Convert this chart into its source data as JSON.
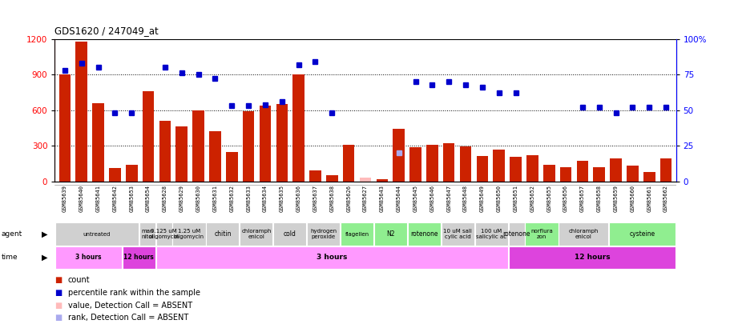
{
  "title": "GDS1620 / 247049_at",
  "gsm_labels": [
    "GSM85639",
    "GSM85640",
    "GSM85641",
    "GSM85642",
    "GSM85653",
    "GSM85654",
    "GSM85628",
    "GSM85629",
    "GSM85630",
    "GSM85631",
    "GSM85632",
    "GSM85633",
    "GSM85634",
    "GSM85635",
    "GSM85636",
    "GSM85637",
    "GSM85638",
    "GSM85626",
    "GSM85627",
    "GSM85643",
    "GSM85644",
    "GSM85645",
    "GSM85646",
    "GSM85647",
    "GSM85648",
    "GSM85649",
    "GSM85650",
    "GSM85651",
    "GSM85652",
    "GSM85655",
    "GSM85656",
    "GSM85657",
    "GSM85658",
    "GSM85659",
    "GSM85660",
    "GSM85661",
    "GSM85662"
  ],
  "bar_values": [
    900,
    1180,
    660,
    110,
    140,
    760,
    510,
    460,
    600,
    420,
    250,
    590,
    640,
    650,
    900,
    90,
    50,
    310,
    30,
    20,
    440,
    290,
    310,
    320,
    295,
    215,
    270,
    210,
    220,
    140,
    120,
    175,
    120,
    195,
    130,
    80,
    195
  ],
  "bar_absent": [
    false,
    false,
    false,
    false,
    false,
    false,
    false,
    false,
    false,
    false,
    false,
    false,
    false,
    false,
    false,
    false,
    false,
    false,
    true,
    false,
    false,
    false,
    false,
    false,
    false,
    false,
    false,
    false,
    false,
    false,
    false,
    false,
    false,
    false,
    false,
    false,
    false
  ],
  "percentile_values": [
    78,
    83,
    80,
    48,
    48,
    null,
    80,
    76,
    75,
    72,
    53,
    53,
    54,
    56,
    82,
    84,
    48,
    null,
    null,
    null,
    20,
    70,
    68,
    70,
    68,
    66,
    62,
    62,
    null,
    null,
    null,
    52,
    52,
    48,
    52,
    52,
    52
  ],
  "percentile_absent": [
    false,
    false,
    false,
    false,
    false,
    false,
    false,
    false,
    false,
    false,
    false,
    false,
    false,
    false,
    false,
    false,
    false,
    false,
    false,
    false,
    true,
    false,
    false,
    false,
    false,
    false,
    false,
    false,
    false,
    false,
    false,
    false,
    false,
    false,
    false,
    false,
    false
  ],
  "agent_groups": [
    {
      "label": "untreated",
      "start": 0,
      "end": 5,
      "color": "#d0d0d0"
    },
    {
      "label": "man\nnitol",
      "start": 5,
      "end": 6,
      "color": "#d0d0d0"
    },
    {
      "label": "0.125 uM\noligomycin",
      "start": 6,
      "end": 7,
      "color": "#d0d0d0"
    },
    {
      "label": "1.25 uM\noligomycin",
      "start": 7,
      "end": 9,
      "color": "#d0d0d0"
    },
    {
      "label": "chitin",
      "start": 9,
      "end": 11,
      "color": "#d0d0d0"
    },
    {
      "label": "chloramph\nenicol",
      "start": 11,
      "end": 13,
      "color": "#d0d0d0"
    },
    {
      "label": "cold",
      "start": 13,
      "end": 15,
      "color": "#d0d0d0"
    },
    {
      "label": "hydrogen\nperoxide",
      "start": 15,
      "end": 17,
      "color": "#d0d0d0"
    },
    {
      "label": "flagellen",
      "start": 17,
      "end": 19,
      "color": "#90ee90"
    },
    {
      "label": "N2",
      "start": 19,
      "end": 21,
      "color": "#90ee90"
    },
    {
      "label": "rotenone",
      "start": 21,
      "end": 23,
      "color": "#90ee90"
    },
    {
      "label": "10 uM sali\ncylic acid",
      "start": 23,
      "end": 25,
      "color": "#d0d0d0"
    },
    {
      "label": "100 uM\nsalicylic ac",
      "start": 25,
      "end": 27,
      "color": "#d0d0d0"
    },
    {
      "label": "rotenone",
      "start": 27,
      "end": 28,
      "color": "#d0d0d0"
    },
    {
      "label": "norflura\nzon",
      "start": 28,
      "end": 30,
      "color": "#90ee90"
    },
    {
      "label": "chloramph\nenicol",
      "start": 30,
      "end": 33,
      "color": "#d0d0d0"
    },
    {
      "label": "cysteine",
      "start": 33,
      "end": 37,
      "color": "#90ee90"
    }
  ],
  "time_groups": [
    {
      "label": "3 hours",
      "start": 0,
      "end": 4,
      "color": "#ff99ff"
    },
    {
      "label": "12 hours",
      "start": 4,
      "end": 6,
      "color": "#dd44dd"
    },
    {
      "label": "3 hours",
      "start": 6,
      "end": 27,
      "color": "#ff99ff"
    },
    {
      "label": "12 hours",
      "start": 27,
      "end": 37,
      "color": "#dd44dd"
    }
  ],
  "ylim_left": [
    0,
    1200
  ],
  "ylim_right": [
    0,
    100
  ],
  "yticks_left": [
    0,
    300,
    600,
    900,
    1200
  ],
  "yticks_right": [
    0,
    25,
    50,
    75,
    100
  ],
  "bar_color": "#cc2200",
  "bar_absent_color": "#ffbbbb",
  "dot_color": "#0000cc",
  "dot_absent_color": "#aaaaee",
  "grid_color": "#555555"
}
